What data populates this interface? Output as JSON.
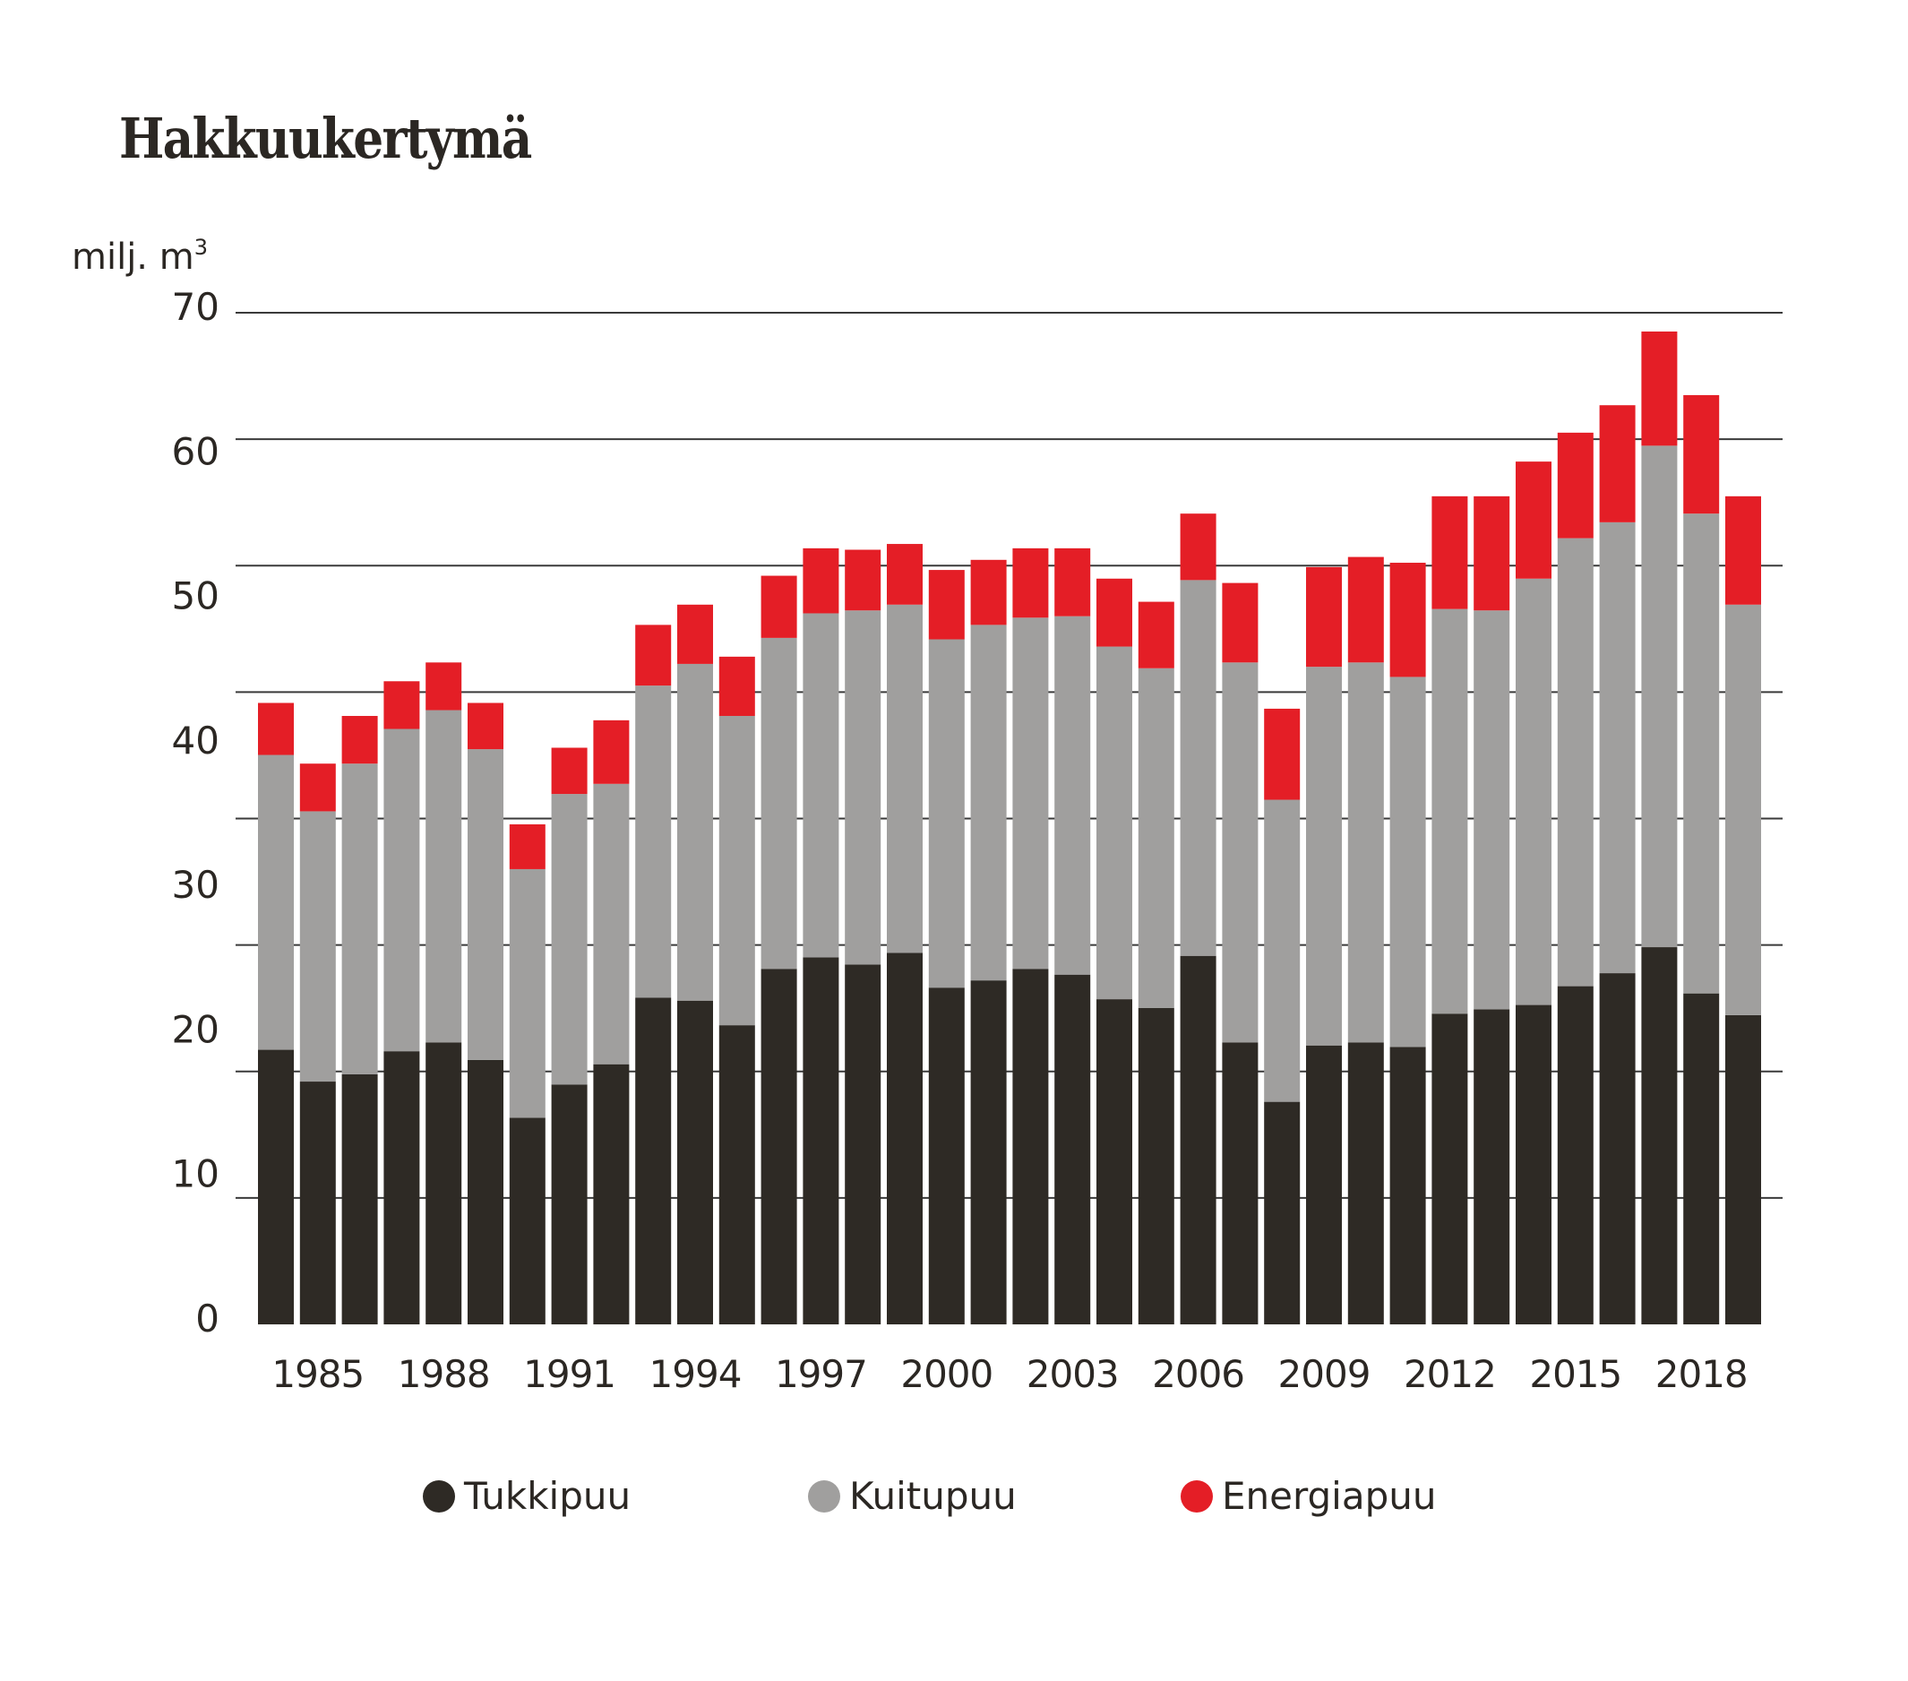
{
  "title": "Hakkuukertymä",
  "unit_label": "milj. m",
  "unit_sup": "3",
  "colors": {
    "Tukkipuu": "#2e2a25",
    "Kuitupuu": "#a09f9e",
    "Energiapuu": "#e41e26",
    "gridline": "#3a3a3a"
  },
  "legend": [
    {
      "label": "Tukkipuu",
      "color": "#2e2a25"
    },
    {
      "label": "Kuitupuu",
      "color": "#a09f9e"
    },
    {
      "label": "Energiapuu",
      "color": "#e41e26"
    }
  ],
  "chart_data": {
    "type": "bar",
    "stacked": true,
    "title": "Hakkuukertymä",
    "xlabel": "",
    "ylabel": "milj. m³",
    "ylim": [
      0,
      70
    ],
    "yticks": [
      0,
      10,
      20,
      30,
      40,
      50,
      60,
      70
    ],
    "grid": true,
    "legend_position": "bottom",
    "categories": [
      1984,
      1985,
      1986,
      1987,
      1988,
      1989,
      1990,
      1991,
      1992,
      1993,
      1994,
      1995,
      1996,
      1997,
      1998,
      1999,
      2000,
      2001,
      2002,
      2003,
      2004,
      2005,
      2006,
      2007,
      2008,
      2009,
      2010,
      2011,
      2012,
      2013,
      2014,
      2015,
      2016,
      2017,
      2018,
      2019
    ],
    "xtick_labels": [
      "1985",
      "1988",
      "1991",
      "1994",
      "1997",
      "2000",
      "2003",
      "2006",
      "2009",
      "2012",
      "2015",
      "2018"
    ],
    "series": [
      {
        "name": "Tukkipuu",
        "values": [
          19.0,
          16.8,
          17.3,
          18.9,
          19.5,
          18.3,
          14.3,
          16.6,
          18.0,
          22.6,
          22.4,
          20.7,
          24.6,
          25.4,
          24.9,
          25.7,
          23.3,
          23.8,
          24.6,
          24.2,
          22.5,
          21.9,
          25.5,
          19.5,
          15.4,
          19.3,
          19.5,
          19.2,
          21.5,
          21.8,
          22.1,
          23.4,
          24.3,
          26.1,
          22.9,
          21.4
        ]
      },
      {
        "name": "Kuitupuu",
        "values": [
          20.4,
          18.7,
          21.5,
          22.3,
          23.0,
          21.5,
          17.2,
          20.1,
          19.4,
          21.6,
          23.3,
          21.4,
          22.9,
          23.8,
          24.5,
          24.1,
          24.1,
          24.6,
          24.3,
          24.8,
          24.4,
          23.5,
          26.0,
          26.3,
          20.9,
          26.2,
          26.3,
          25.6,
          28.0,
          27.6,
          29.5,
          31.0,
          31.2,
          34.7,
          33.2,
          28.4
        ]
      },
      {
        "name": "Energiapuu",
        "values": [
          3.6,
          3.3,
          3.3,
          3.3,
          3.3,
          3.2,
          3.1,
          3.2,
          4.4,
          4.2,
          4.1,
          4.1,
          4.3,
          4.5,
          4.2,
          4.2,
          4.8,
          4.5,
          4.8,
          4.7,
          4.7,
          4.6,
          4.6,
          5.5,
          6.3,
          6.9,
          7.3,
          7.9,
          7.8,
          7.9,
          8.1,
          7.3,
          8.1,
          7.9,
          8.2,
          7.5
        ]
      }
    ]
  }
}
